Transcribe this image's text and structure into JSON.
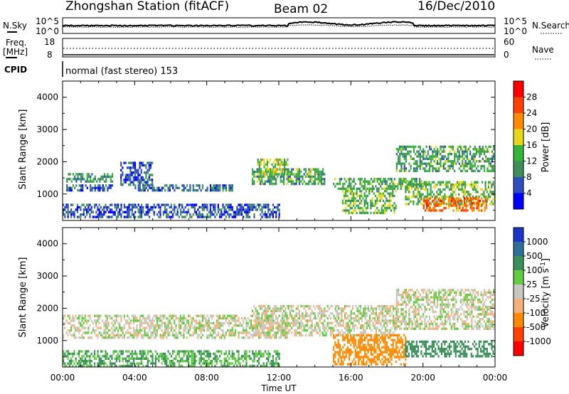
{
  "header": {
    "station": "Zhongshan Station (fitACF)",
    "beam": "Beam 02",
    "date": "16/Dec/2010"
  },
  "noise_panel": {
    "left_label": "N.Sky",
    "right_label": "N.Search",
    "left_ticks": [
      "10^5",
      "10^0"
    ],
    "right_ticks": [
      "10^5",
      "10^0"
    ]
  },
  "freq_panel": {
    "left_label_top": "Freq.",
    "left_label_bottom": "[MHz]",
    "right_label": "Nave",
    "left_ticks": [
      "18",
      "8"
    ],
    "right_ticks": [
      "60",
      "0"
    ]
  },
  "cpid": {
    "label": "CPID",
    "value": "normal (fast stereo) 153"
  },
  "x_axis": {
    "title": "Time UT",
    "ticks": [
      "00:00",
      "04:00",
      "08:00",
      "12:00",
      "16:00",
      "20:00",
      "00:00"
    ]
  },
  "chart_data": [
    {
      "type": "heatmap",
      "title": "Power",
      "ylabel": "Slant Range [km]",
      "xlabel": "Time UT",
      "xlim": [
        "00:00",
        "24:00"
      ],
      "ylim": [
        180,
        4500
      ],
      "yticks": [
        "1000",
        "2000",
        "3000",
        "4000"
      ],
      "colorbar": {
        "label": "Power [dB]",
        "ticks": [
          "4",
          "8",
          "12",
          "16",
          "20",
          "24",
          "28"
        ],
        "colors": [
          "#0000ff",
          "#2d4fc0",
          "#3f8f5a",
          "#37b53a",
          "#e8d81a",
          "#ff8a00",
          "#ff4000",
          "#ff0000"
        ]
      },
      "echo_regions": [
        {
          "t": [
            0.2,
            2.8
          ],
          "r": [
            1100,
            1300
          ],
          "level": 6
        },
        {
          "t": [
            0.2,
            2.8
          ],
          "r": [
            1400,
            1650
          ],
          "level": 10
        },
        {
          "t": [
            3.2,
            5.0
          ],
          "r": [
            1300,
            2000
          ],
          "level": 6
        },
        {
          "t": [
            4.0,
            9.5
          ],
          "r": [
            1100,
            1300
          ],
          "level": 8
        },
        {
          "t": [
            0.0,
            12.0
          ],
          "r": [
            300,
            700
          ],
          "level": 6
        },
        {
          "t": [
            10.5,
            14.5
          ],
          "r": [
            1300,
            1800
          ],
          "level": 12
        },
        {
          "t": [
            10.8,
            12.5
          ],
          "r": [
            1600,
            2100
          ],
          "level": 16
        },
        {
          "t": [
            15.0,
            20.0
          ],
          "r": [
            1200,
            1500
          ],
          "level": 12
        },
        {
          "t": [
            15.5,
            18.5
          ],
          "r": [
            400,
            1200
          ],
          "level": 14
        },
        {
          "t": [
            18.5,
            24.0
          ],
          "r": [
            1700,
            2500
          ],
          "level": 12
        },
        {
          "t": [
            19.0,
            24.0
          ],
          "r": [
            700,
            1400
          ],
          "level": 14
        },
        {
          "t": [
            20.0,
            23.5
          ],
          "r": [
            500,
            900
          ],
          "level": 24
        }
      ]
    },
    {
      "type": "heatmap",
      "title": "Velocity",
      "ylabel": "Slant Range [km]",
      "xlabel": "Time UT",
      "xlim": [
        "00:00",
        "24:00"
      ],
      "ylim": [
        180,
        4500
      ],
      "yticks": [
        "1000",
        "2000",
        "3000",
        "4000"
      ],
      "colorbar": {
        "label": "Velocity [m s",
        "label_sup": "-1",
        "label_end": "]",
        "ticks": [
          "1000",
          "500",
          "100",
          "25",
          "-25",
          "-100",
          "-500",
          "-1000"
        ],
        "colors": [
          "#1a35c8",
          "#2e6f99",
          "#3a8f5a",
          "#62cc44",
          "#c8c8c0",
          "#f4b27a",
          "#ff8a00",
          "#ff4000",
          "#ff0000"
        ]
      },
      "echo_regions": [
        {
          "t": [
            0.0,
            12.5
          ],
          "r": [
            1100,
            1800
          ],
          "level": 0
        },
        {
          "t": [
            0.0,
            12.0
          ],
          "r": [
            250,
            700
          ],
          "level": 100
        },
        {
          "t": [
            10.5,
            18.5
          ],
          "r": [
            1200,
            2100
          ],
          "level": 0
        },
        {
          "t": [
            15.0,
            19.0
          ],
          "r": [
            300,
            1200
          ],
          "level": -300
        },
        {
          "t": [
            18.5,
            24.0
          ],
          "r": [
            1400,
            2600
          ],
          "level": 0
        },
        {
          "t": [
            19.0,
            24.0
          ],
          "r": [
            500,
            1000
          ],
          "level": 200
        }
      ]
    }
  ]
}
